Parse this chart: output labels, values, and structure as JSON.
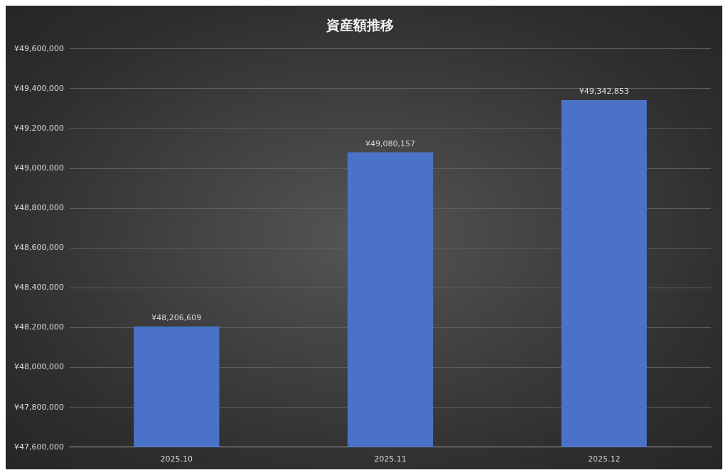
{
  "chart_data": {
    "type": "bar",
    "title": "資産額推移",
    "categories": [
      "2025.10",
      "2025.11",
      "2025.12"
    ],
    "values": [
      48206609,
      49080157,
      49342853
    ],
    "value_labels": [
      "¥48,206,609",
      "¥49,080,157",
      "¥49,342,853"
    ],
    "color": "#4a72c8",
    "ylim": [
      47600000,
      49600000
    ],
    "yticks": [
      {
        "value": 47600000,
        "label": "¥47,600,000"
      },
      {
        "value": 47800000,
        "label": "¥47,800,000"
      },
      {
        "value": 48000000,
        "label": "¥48,000,000"
      },
      {
        "value": 48200000,
        "label": "¥48,200,000"
      },
      {
        "value": 48400000,
        "label": "¥48,400,000"
      },
      {
        "value": 48600000,
        "label": "¥48,600,000"
      },
      {
        "value": 48800000,
        "label": "¥48,800,000"
      },
      {
        "value": 49000000,
        "label": "¥49,000,000"
      },
      {
        "value": 49200000,
        "label": "¥49,200,000"
      },
      {
        "value": 49400000,
        "label": "¥49,400,000"
      },
      {
        "value": 49600000,
        "label": "¥49,600,000"
      }
    ],
    "grid": "y",
    "legend": false
  }
}
